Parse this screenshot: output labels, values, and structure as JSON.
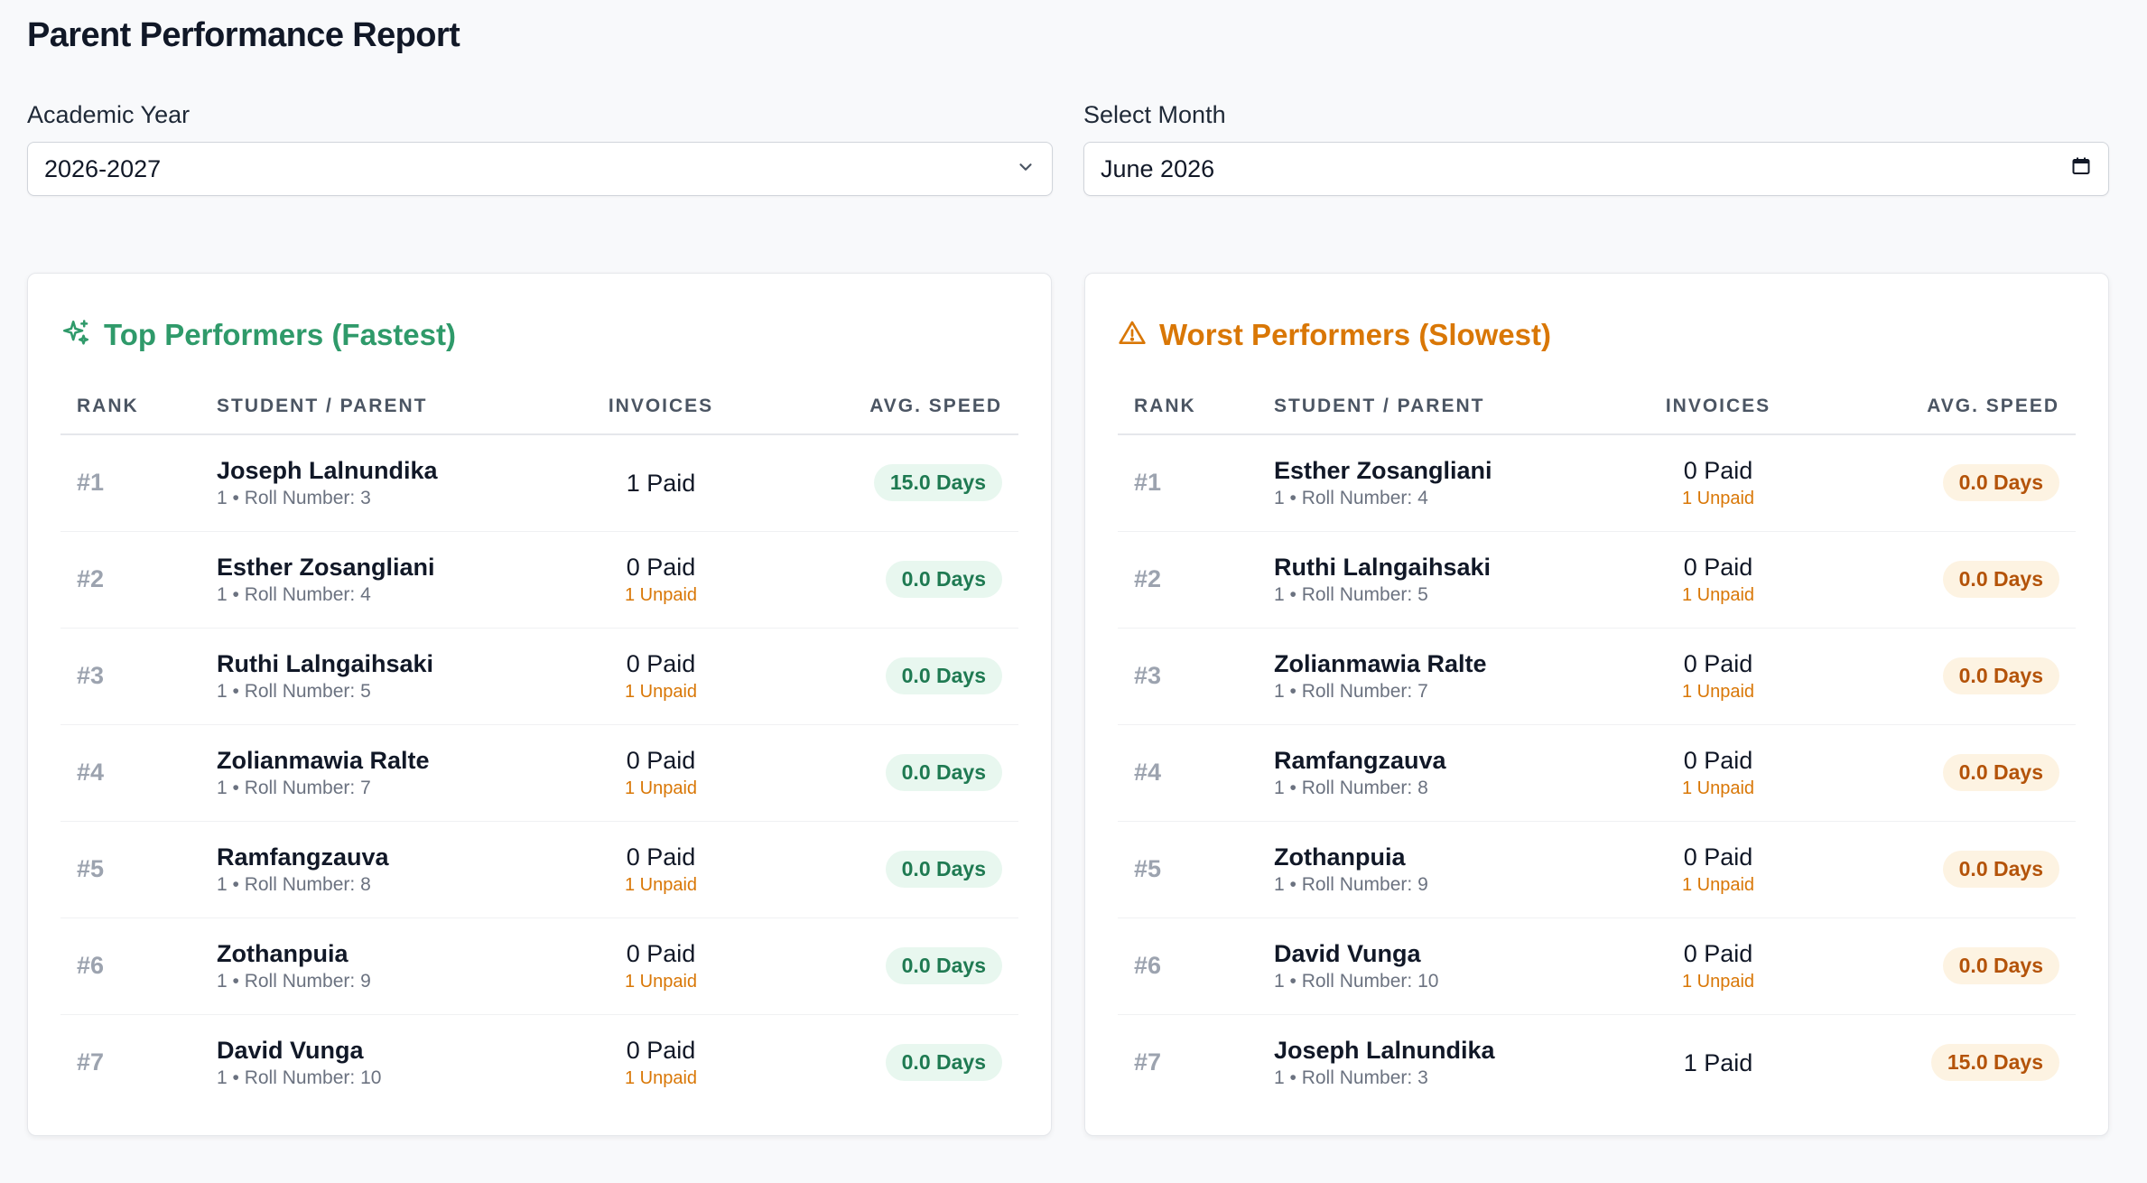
{
  "page": {
    "title": "Parent Performance Report"
  },
  "filters": {
    "academic_year": {
      "label": "Academic Year",
      "value": "2026-2027"
    },
    "month": {
      "label": "Select Month",
      "value": "June 2026"
    }
  },
  "columns": {
    "rank": "Rank",
    "student": "Student / Parent",
    "invoices": "Invoices",
    "speed": "Avg. Speed"
  },
  "top": {
    "title": "Top Performers (Fastest)",
    "icon": "sparkles-icon",
    "accent": "#2f9a6a",
    "rows": [
      {
        "rank": "#1",
        "name": "Joseph Lalnundika",
        "sub": "1 • Roll Number: 3",
        "paid": "1 Paid",
        "unpaid": "",
        "speed": "15.0 Days"
      },
      {
        "rank": "#2",
        "name": "Esther Zosangliani",
        "sub": "1 • Roll Number: 4",
        "paid": "0 Paid",
        "unpaid": "1 Unpaid",
        "speed": "0.0 Days"
      },
      {
        "rank": "#3",
        "name": "Ruthi Lalngaihsaki",
        "sub": "1 • Roll Number: 5",
        "paid": "0 Paid",
        "unpaid": "1 Unpaid",
        "speed": "0.0 Days"
      },
      {
        "rank": "#4",
        "name": "Zolianmawia Ralte",
        "sub": "1 • Roll Number: 7",
        "paid": "0 Paid",
        "unpaid": "1 Unpaid",
        "speed": "0.0 Days"
      },
      {
        "rank": "#5",
        "name": "Ramfangzauva",
        "sub": "1 • Roll Number: 8",
        "paid": "0 Paid",
        "unpaid": "1 Unpaid",
        "speed": "0.0 Days"
      },
      {
        "rank": "#6",
        "name": "Zothanpuia",
        "sub": "1 • Roll Number: 9",
        "paid": "0 Paid",
        "unpaid": "1 Unpaid",
        "speed": "0.0 Days"
      },
      {
        "rank": "#7",
        "name": "David Vunga",
        "sub": "1 • Roll Number: 10",
        "paid": "0 Paid",
        "unpaid": "1 Unpaid",
        "speed": "0.0 Days"
      }
    ]
  },
  "worst": {
    "title": "Worst Performers (Slowest)",
    "icon": "warning-icon",
    "accent": "#d97706",
    "rows": [
      {
        "rank": "#1",
        "name": "Esther Zosangliani",
        "sub": "1 • Roll Number: 4",
        "paid": "0 Paid",
        "unpaid": "1 Unpaid",
        "speed": "0.0 Days"
      },
      {
        "rank": "#2",
        "name": "Ruthi Lalngaihsaki",
        "sub": "1 • Roll Number: 5",
        "paid": "0 Paid",
        "unpaid": "1 Unpaid",
        "speed": "0.0 Days"
      },
      {
        "rank": "#3",
        "name": "Zolianmawia Ralte",
        "sub": "1 • Roll Number: 7",
        "paid": "0 Paid",
        "unpaid": "1 Unpaid",
        "speed": "0.0 Days"
      },
      {
        "rank": "#4",
        "name": "Ramfangzauva",
        "sub": "1 • Roll Number: 8",
        "paid": "0 Paid",
        "unpaid": "1 Unpaid",
        "speed": "0.0 Days"
      },
      {
        "rank": "#5",
        "name": "Zothanpuia",
        "sub": "1 • Roll Number: 9",
        "paid": "0 Paid",
        "unpaid": "1 Unpaid",
        "speed": "0.0 Days"
      },
      {
        "rank": "#6",
        "name": "David Vunga",
        "sub": "1 • Roll Number: 10",
        "paid": "0 Paid",
        "unpaid": "1 Unpaid",
        "speed": "0.0 Days"
      },
      {
        "rank": "#7",
        "name": "Joseph Lalnundika",
        "sub": "1 • Roll Number: 3",
        "paid": "1 Paid",
        "unpaid": "",
        "speed": "15.0 Days"
      }
    ]
  }
}
